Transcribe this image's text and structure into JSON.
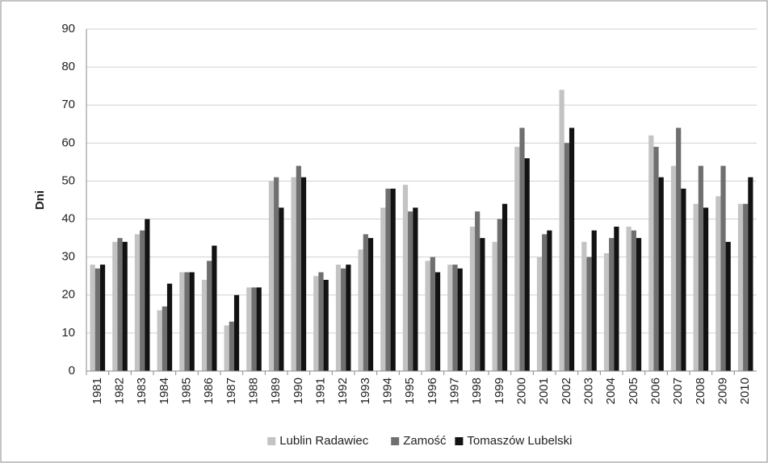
{
  "chart_data": {
    "type": "bar",
    "y_label": "Dni",
    "categories": [
      "1981",
      "1982",
      "1983",
      "1984",
      "1985",
      "1986",
      "1987",
      "1988",
      "1989",
      "1990",
      "1991",
      "1992",
      "1993",
      "1994",
      "1995",
      "1996",
      "1997",
      "1998",
      "1999",
      "2000",
      "2001",
      "2002",
      "2003",
      "2004",
      "2005",
      "2006",
      "2007",
      "2008",
      "2009",
      "2010"
    ],
    "series": [
      {
        "name": "Lublin Radawiec",
        "color": "#c3c3c3",
        "values": [
          28,
          34,
          36,
          16,
          26,
          24,
          12,
          22,
          50,
          51,
          25,
          28,
          32,
          43,
          49,
          29,
          28,
          38,
          34,
          59,
          30,
          74,
          34,
          31,
          38,
          62,
          54,
          44,
          46,
          44
        ]
      },
      {
        "name": "Zamość",
        "color": "#6f6f6f",
        "values": [
          27,
          35,
          37,
          17,
          26,
          29,
          13,
          22,
          51,
          54,
          26,
          27,
          36,
          48,
          42,
          30,
          28,
          42,
          40,
          64,
          36,
          60,
          30,
          35,
          37,
          59,
          64,
          54,
          54,
          44
        ]
      },
      {
        "name": "Tomaszów Lubelski",
        "color": "#121212",
        "values": [
          28,
          34,
          40,
          23,
          26,
          33,
          20,
          22,
          43,
          51,
          24,
          28,
          35,
          48,
          43,
          26,
          27,
          35,
          44,
          56,
          37,
          64,
          37,
          38,
          35,
          51,
          48,
          43,
          34,
          51
        ]
      }
    ],
    "ylim": [
      0,
      90
    ],
    "yticks": [
      0,
      10,
      20,
      30,
      40,
      50,
      60,
      70,
      80,
      90
    ],
    "grid": true,
    "legend": "bottom"
  }
}
